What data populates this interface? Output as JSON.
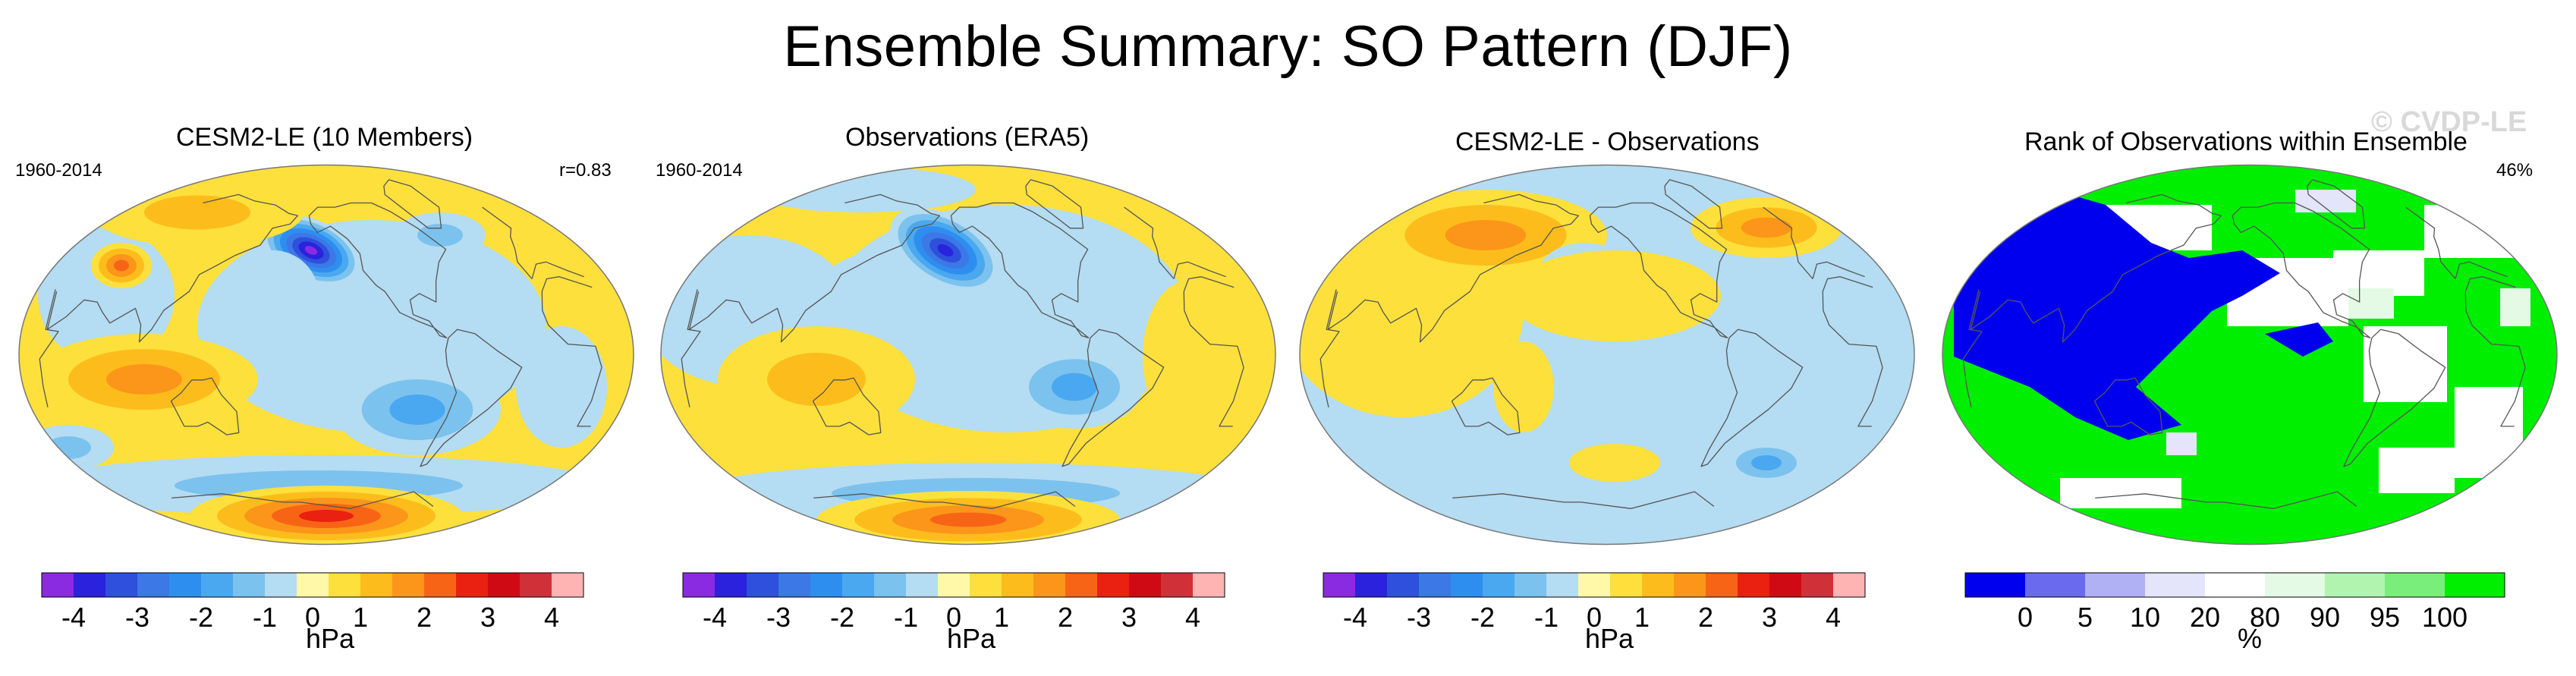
{
  "title": "Ensemble Summary: SO Pattern (DJF)",
  "watermark": "© CVDP-LE",
  "chart_data": [
    {
      "type": "heatmap",
      "title": "CESM2-LE (10 Members)",
      "left_label": "1960-2014",
      "right_label": "r=0.83",
      "units": "hPa",
      "colorbar": {
        "ticks": [
          "-4",
          "-3",
          "-2",
          "-1",
          "0",
          "1",
          "2",
          "3",
          "4"
        ],
        "levels": [
          -4.5,
          -4,
          -3.5,
          -3,
          -2.5,
          -2,
          -1.5,
          -1,
          -0.5,
          0.5,
          1,
          1.5,
          2,
          2.5,
          3,
          3.5,
          4,
          4.5
        ],
        "colors": [
          "#8a2be2",
          "#2a22dc",
          "#2e50dc",
          "#3c78e6",
          "#2e8ef0",
          "#4aa8f0",
          "#7cc2ee",
          "#b4dcf2",
          "#fff8a8",
          "#fde03c",
          "#fcbd1c",
          "#fb961a",
          "#f86416",
          "#ea2010",
          "#d00a14",
          "#d03038",
          "#ffb4b4"
        ]
      },
      "features": [
        {
          "name": "north-pacific-low",
          "sign": "negative",
          "lon": -165,
          "lat": 52,
          "peak": -4
        },
        {
          "name": "tropical-west-pacific",
          "sign": "positive",
          "lon": 130,
          "lat": -5,
          "peak": 1.5
        },
        {
          "name": "southern-ocean-high",
          "sign": "positive",
          "lon": -110,
          "lat": -60,
          "peak": 2.5
        },
        {
          "name": "south-pacific-low",
          "sign": "negative",
          "lon": -125,
          "lat": -30,
          "peak": -2
        }
      ]
    },
    {
      "type": "heatmap",
      "title": "Observations (ERA5)",
      "left_label": "1960-2014",
      "units": "hPa",
      "colorbar": {
        "ticks": [
          "-4",
          "-3",
          "-2",
          "-1",
          "0",
          "1",
          "2",
          "3",
          "4"
        ]
      },
      "features": [
        {
          "name": "north-pacific-low",
          "sign": "negative",
          "lon": -160,
          "lat": 50,
          "peak": -3.5
        },
        {
          "name": "tropical-west-pacific",
          "sign": "positive",
          "lon": 130,
          "lat": 0,
          "peak": 1
        },
        {
          "name": "southern-ocean-high",
          "sign": "positive",
          "lon": -115,
          "lat": -65,
          "peak": 2
        }
      ]
    },
    {
      "type": "heatmap",
      "title": "CESM2-LE - Observations",
      "units": "hPa",
      "colorbar": {
        "ticks": [
          "-4",
          "-3",
          "-2",
          "-1",
          "0",
          "1",
          "2",
          "3",
          "4"
        ]
      },
      "features": [
        {
          "name": "eurasia-high",
          "sign": "positive",
          "lon": 75,
          "lat": 58,
          "peak": 2
        },
        {
          "name": "north-pacific-low",
          "sign": "negative",
          "lon": -170,
          "lat": 45,
          "peak": -1.5
        },
        {
          "name": "southern-ocean-low",
          "sign": "negative",
          "lon": -50,
          "lat": -55,
          "peak": -1.5
        }
      ]
    },
    {
      "type": "heatmap",
      "title": "Rank of Observations within Ensemble",
      "right_label": "46%",
      "units": "%",
      "colorbar": {
        "ticks": [
          "0",
          "5",
          "10",
          "20",
          "80",
          "90",
          "95",
          "100"
        ],
        "levels": [
          0,
          5,
          10,
          20,
          80,
          90,
          95,
          100
        ],
        "colors": [
          "#0000ee",
          "#6a6aee",
          "#b0b0f4",
          "#e4e4fa",
          "#ffffff",
          "#e4fae4",
          "#b0f4b0",
          "#7aee7a",
          "#00ee00"
        ]
      }
    }
  ]
}
